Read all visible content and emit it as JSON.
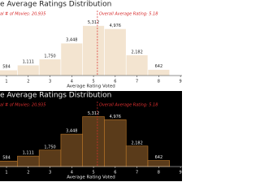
{
  "chart_data": [
    {
      "type": "histogram",
      "title": "e Average Ratings Distribution",
      "annotations": [
        "al # of Movies: 20,935",
        "Overall Average Rating: 5.18"
      ],
      "x_label": "Average Rating Voted",
      "bins": [
        0.5,
        1.5,
        2.5,
        3.5,
        4.5,
        5.5,
        6.5,
        7.5,
        8.5
      ],
      "values": [
        584,
        1111,
        1750,
        3448,
        5312,
        4976,
        2182,
        642
      ],
      "value_labels": [
        "584",
        "1,111",
        "1,750",
        "3,448",
        "5,312",
        "4,976",
        "2,182",
        "642"
      ],
      "average": 5.18,
      "xlim": [
        0.7,
        9.07
      ],
      "ylim": [
        0,
        7000
      ],
      "xticks": [
        1,
        2,
        3,
        4,
        5,
        6,
        7,
        8,
        9
      ],
      "background": "#ffffff",
      "color": "#f3e4d0",
      "edge_color": "#ffffff",
      "text_color": "#222222",
      "annotation_color": "#d62728"
    },
    {
      "type": "histogram",
      "title": "e Average Ratings Distribution",
      "annotations": [
        "al # of Movies: 20,935",
        "Overall Average Rating: 5.18"
      ],
      "x_label": "Average Rating Voted",
      "bins": [
        0.5,
        1.5,
        2.5,
        3.5,
        4.5,
        5.5,
        6.5,
        7.5,
        8.5
      ],
      "values": [
        584,
        1111,
        1750,
        3448,
        5312,
        4976,
        2182,
        642
      ],
      "value_labels": [
        "584",
        "1,111",
        "1,750",
        "3,448",
        "5,312",
        "4,976",
        "2,182",
        "642"
      ],
      "average": 5.18,
      "xlim": [
        0.7,
        9.07
      ],
      "ylim": [
        0,
        7000
      ],
      "xticks": [
        1,
        2,
        3,
        4,
        5,
        6,
        7,
        8,
        9
      ],
      "background": "#000000",
      "color": "#5a3b1a",
      "edge_color": "#c07a2a",
      "text_color": "#eeeeee",
      "annotation_color": "#e03030"
    }
  ]
}
